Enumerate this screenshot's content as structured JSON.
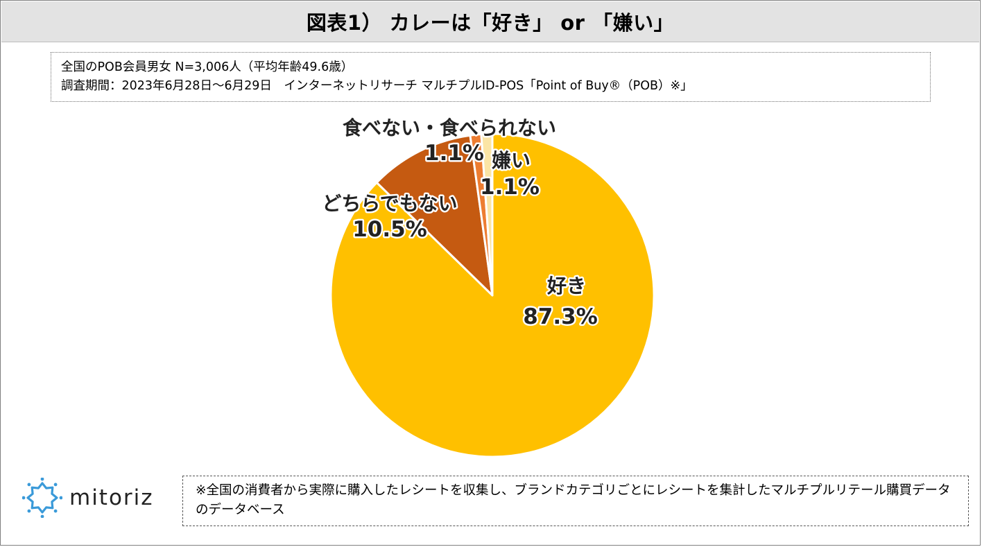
{
  "title": "図表1） カレーは「好き」 or 「嫌い」",
  "info": {
    "line1": "全国のPOB会員男女 N=3,006人（平均年齢49.6歳）",
    "line2": "調査期間：2023年6月28日～6月29日　インターネットリサーチ マルチプルID-POS「Point of Buy®（POB）※」"
  },
  "chart_data": {
    "type": "pie",
    "title": "",
    "start_angle_deg": 0,
    "direction": "clockwise",
    "slices": [
      {
        "label": "好き",
        "value": 87.3,
        "value_label": "87.3%",
        "color": "#FFC000"
      },
      {
        "label": "どちらでもない",
        "value": 10.5,
        "value_label": "10.5%",
        "color": "#C55A11"
      },
      {
        "label": "食べない・食べられない",
        "value": 1.1,
        "value_label": "1.1%",
        "color": "#ED7D31"
      },
      {
        "label": "嫌い",
        "value": 1.1,
        "value_label": "1.1%",
        "color": "#FBE5A5"
      }
    ]
  },
  "logo": {
    "text": "mitoriz",
    "icon": "mitoriz-star-logo-icon",
    "color": "#3A9AD9"
  },
  "note": "※全国の消費者から実際に購入したレシートを収集し、ブランドカテゴリごとにレシートを集計したマルチプルリテール購買データのデータベース"
}
